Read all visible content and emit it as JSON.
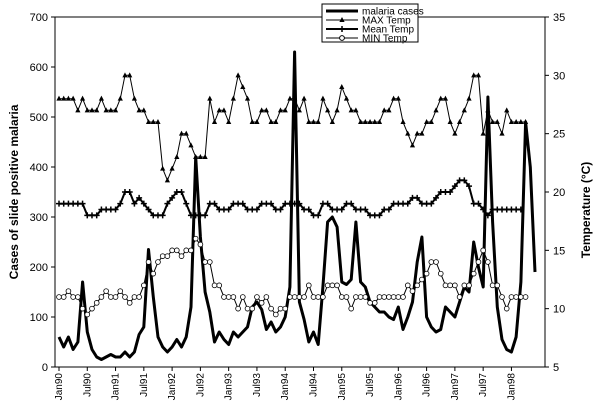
{
  "chart_data": {
    "type": "line",
    "title": "",
    "ylabel": "Cases of slide positive malaria",
    "y2label": "Temperature (°C)",
    "ylim": [
      0,
      700
    ],
    "y2lim": [
      5,
      35
    ],
    "y_ticks": [
      0,
      100,
      200,
      300,
      400,
      500,
      600,
      700
    ],
    "y2_ticks": [
      5,
      10,
      15,
      20,
      25,
      30,
      35
    ],
    "x_tick_labels": [
      "Jan90",
      "Jul90",
      "Jan91",
      "Jul91",
      "Jan92",
      "Jul92",
      "Jan93",
      "Jul93",
      "Jan94",
      "Jul94",
      "Jan95",
      "Jul95",
      "Jan96",
      "Jul96",
      "Jan97",
      "Jul97",
      "Jan98"
    ],
    "x_start": "1990-01",
    "legend_position": "top-right",
    "series": [
      {
        "name": "malaria cases",
        "axis": "left",
        "color": "#000000",
        "values": [
          60,
          40,
          60,
          35,
          50,
          170,
          70,
          35,
          20,
          15,
          20,
          25,
          20,
          20,
          30,
          20,
          30,
          65,
          80,
          235,
          140,
          60,
          40,
          30,
          40,
          55,
          40,
          60,
          120,
          420,
          260,
          150,
          110,
          50,
          70,
          55,
          45,
          70,
          60,
          70,
          80,
          120,
          130,
          115,
          75,
          90,
          70,
          80,
          100,
          160,
          630,
          130,
          95,
          50,
          70,
          45,
          160,
          290,
          300,
          280,
          170,
          165,
          175,
          290,
          170,
          160,
          130,
          120,
          110,
          110,
          100,
          95,
          120,
          75,
          100,
          130,
          210,
          260,
          100,
          80,
          70,
          75,
          120,
          110,
          100,
          130,
          160,
          150,
          250,
          200,
          160,
          540,
          290,
          120,
          55,
          35,
          30,
          60,
          170,
          490,
          400,
          190
        ]
      },
      {
        "name": "MAX Temp",
        "axis": "right",
        "marker": "triangle",
        "color": "#000000",
        "values": [
          28,
          28,
          28,
          28,
          27,
          28,
          27,
          27,
          27,
          28,
          27,
          27,
          27,
          28,
          30,
          30,
          28,
          27,
          27,
          26,
          26,
          26,
          22,
          21,
          22,
          23,
          25,
          25,
          24,
          23,
          23,
          23,
          28,
          26,
          27,
          27,
          26,
          28,
          30,
          29,
          28,
          26,
          26,
          27,
          27,
          26,
          26,
          27,
          27,
          28,
          28,
          27,
          28,
          26,
          26,
          26,
          28,
          27,
          26,
          27,
          29,
          28,
          27,
          27,
          26,
          26,
          26,
          26,
          26,
          27,
          27,
          28,
          28,
          26,
          25,
          24,
          25,
          25,
          26,
          26,
          27,
          28,
          28,
          26,
          25,
          26,
          27,
          28,
          30,
          30,
          25,
          27,
          26,
          26,
          25,
          27,
          26,
          26,
          26,
          26
        ]
      },
      {
        "name": "Mean Temp",
        "axis": "right",
        "color": "#000000",
        "marker": "plus",
        "values": [
          19,
          19,
          19,
          19,
          19,
          19,
          18,
          18,
          18,
          18.5,
          18.5,
          18.5,
          18.5,
          19,
          20,
          20,
          19,
          19.5,
          19,
          18.5,
          18,
          18,
          18,
          19,
          19.5,
          20,
          20,
          19,
          18,
          18,
          18,
          18,
          19,
          19,
          18.5,
          18.5,
          18.5,
          19,
          19,
          19,
          18.5,
          18.5,
          18.5,
          19,
          19,
          19,
          18.5,
          18.5,
          19,
          19,
          19,
          19,
          18.5,
          18.5,
          18,
          18,
          19,
          19,
          18.5,
          18.5,
          18.5,
          19,
          19,
          18.5,
          18.5,
          18.5,
          18,
          18,
          18,
          18.5,
          18.5,
          19,
          19,
          19,
          19,
          19.5,
          19.5,
          19,
          19,
          19,
          19.5,
          20,
          20,
          20,
          20.5,
          21,
          21,
          20.5,
          19,
          19,
          18.5,
          18,
          18.5,
          18.5,
          18.5,
          18.5,
          18.5,
          18.5,
          18.5
        ]
      },
      {
        "name": "MIN Temp",
        "axis": "right",
        "marker": "circle",
        "color": "#000000",
        "values": [
          11,
          11,
          11.5,
          11,
          11,
          10,
          9.5,
          10,
          10.5,
          11,
          11.5,
          11,
          11,
          11.5,
          11,
          10.5,
          11,
          11,
          12,
          14,
          13,
          14,
          14.5,
          14.5,
          15,
          15,
          14.5,
          15,
          15,
          16,
          15.5,
          14,
          14,
          12,
          12,
          11,
          11,
          11,
          10,
          11,
          10,
          10,
          11,
          10.5,
          11,
          10,
          9.5,
          10,
          10,
          11,
          11,
          11,
          11,
          12,
          11,
          11,
          11,
          12,
          12,
          12,
          11,
          11,
          10,
          11,
          11,
          11,
          10.5,
          10.5,
          11,
          11,
          11,
          11,
          11,
          11,
          12,
          11.5,
          12,
          12.5,
          13,
          14,
          14,
          13,
          12,
          12,
          12,
          11,
          12,
          12,
          13,
          14,
          15,
          14,
          12,
          12,
          11,
          10,
          11,
          11,
          11,
          11
        ]
      }
    ]
  }
}
